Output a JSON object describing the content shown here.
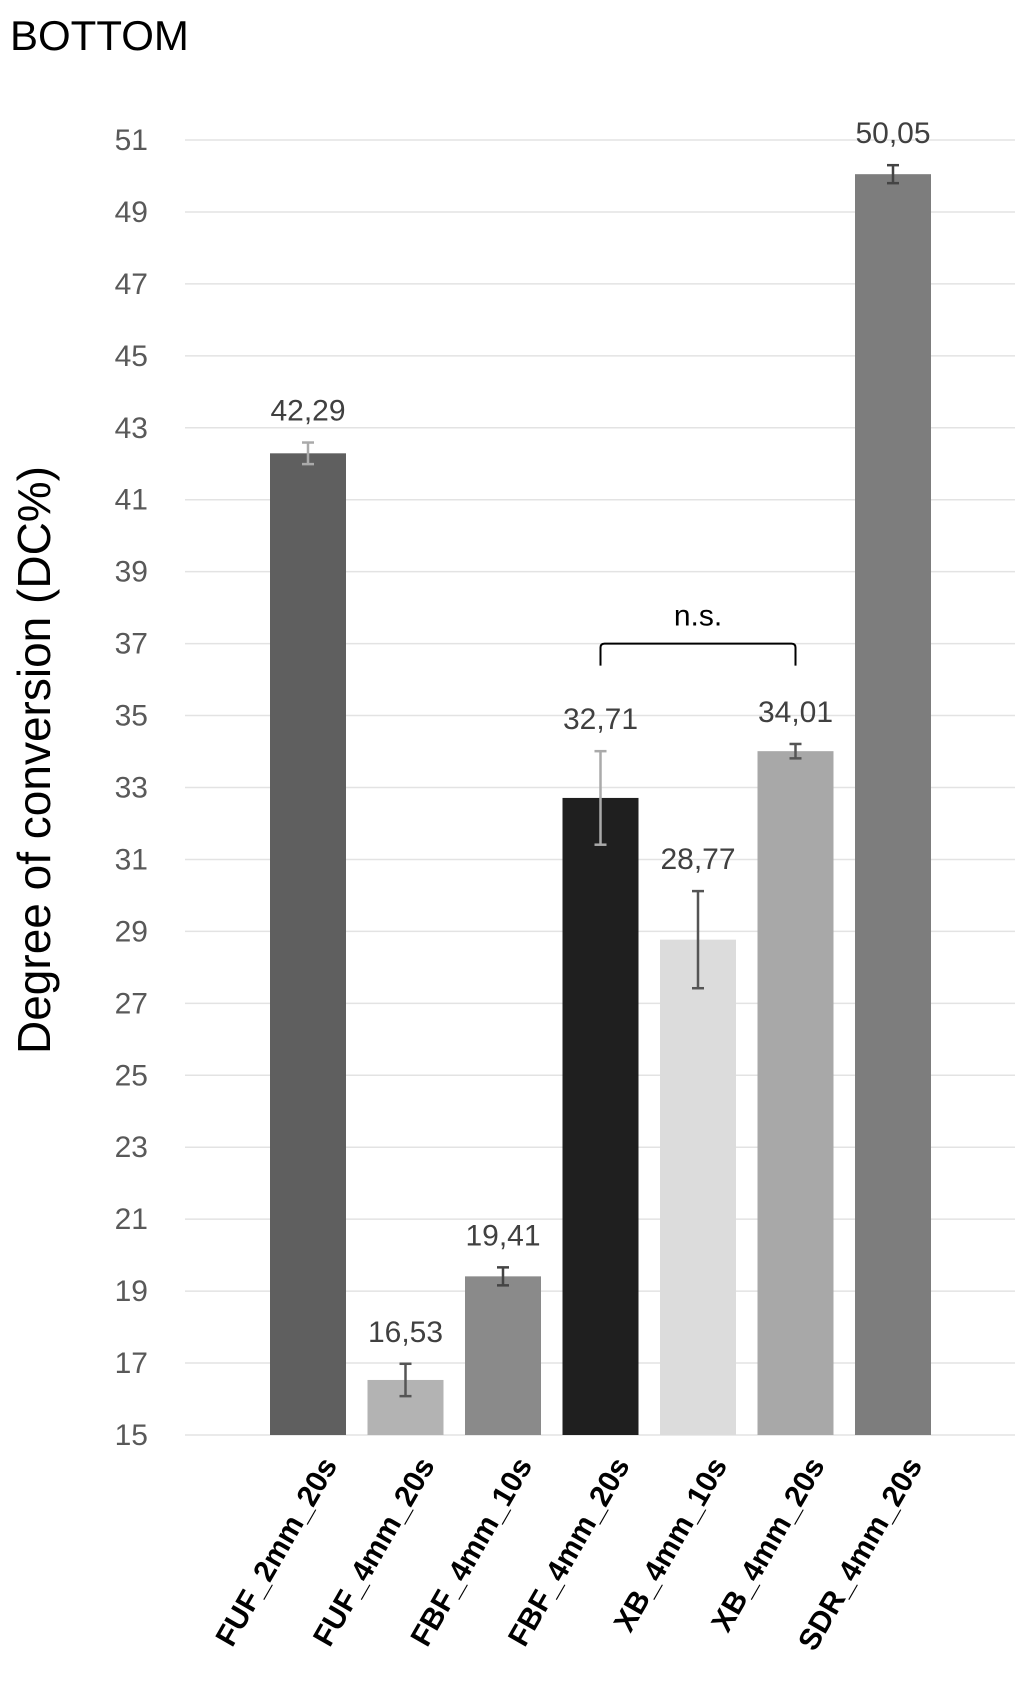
{
  "chart_data": {
    "type": "bar",
    "title": "BOTTOM",
    "xlabel": "",
    "ylabel": "Degree of conversion (DC%)",
    "ylim": [
      15,
      51
    ],
    "yticks": [
      15,
      17,
      19,
      21,
      23,
      25,
      27,
      29,
      31,
      33,
      35,
      37,
      39,
      41,
      43,
      45,
      47,
      49,
      51
    ],
    "grid": true,
    "categories": [
      "FUF_2mm_20s",
      "FUF_4mm_20s",
      "FBF_4mm_10s",
      "FBF_4mm_20s",
      "XB_4mm_10s",
      "XB_4mm_20s",
      "SDR_4mm_20s"
    ],
    "values": [
      42.29,
      16.53,
      19.41,
      32.71,
      28.77,
      34.01,
      50.05
    ],
    "value_labels": [
      "42,29",
      "16,53",
      "19,41",
      "32,71",
      "28,77",
      "34,01",
      "50,05"
    ],
    "errors": [
      0.3,
      0.45,
      0.25,
      1.3,
      1.35,
      0.2,
      0.25
    ],
    "bar_colors": [
      "#5f5f5f",
      "#b3b3b3",
      "#8a8a8a",
      "#1f1f1f",
      "#dcdcdc",
      "#a8a8a8",
      "#7d7d7d"
    ],
    "error_colors": [
      "#aaaaaa",
      "#555555",
      "#444444",
      "#aaaaaa",
      "#555555",
      "#555555",
      "#444444"
    ],
    "annotations": [
      {
        "type": "bracket",
        "from_category": "FBF_4mm_20s",
        "to_category": "XB_4mm_20s",
        "level": 37,
        "text": "n.s."
      }
    ]
  }
}
